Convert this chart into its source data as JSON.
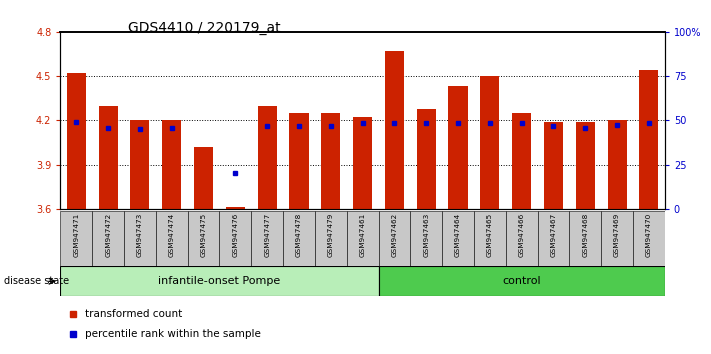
{
  "title": "GDS4410 / 220179_at",
  "samples": [
    "GSM947471",
    "GSM947472",
    "GSM947473",
    "GSM947474",
    "GSM947475",
    "GSM947476",
    "GSM947477",
    "GSM947478",
    "GSM947479",
    "GSM947461",
    "GSM947462",
    "GSM947463",
    "GSM947464",
    "GSM947465",
    "GSM947466",
    "GSM947467",
    "GSM947468",
    "GSM947469",
    "GSM947470"
  ],
  "bar_values": [
    4.52,
    4.3,
    4.2,
    4.2,
    4.02,
    3.61,
    4.3,
    4.25,
    4.25,
    4.22,
    4.67,
    4.28,
    4.43,
    4.5,
    4.25,
    4.19,
    4.19,
    4.2,
    4.54
  ],
  "blue_dot_values": [
    4.19,
    4.15,
    4.14,
    4.15,
    null,
    3.84,
    4.16,
    4.16,
    4.16,
    4.18,
    4.18,
    4.18,
    4.18,
    4.18,
    4.18,
    4.16,
    4.15,
    4.17,
    4.18
  ],
  "bar_color": "#CC2200",
  "dot_color": "#0000CC",
  "bar_bottom": 3.6,
  "ylim": [
    3.6,
    4.8
  ],
  "yticks": [
    3.6,
    3.9,
    4.2,
    4.5,
    4.8
  ],
  "right_yticks": [
    0,
    25,
    50,
    75,
    100
  ],
  "right_yticklabels": [
    "0",
    "25",
    "50",
    "75",
    "100%"
  ],
  "grid_values": [
    3.9,
    4.2,
    4.5
  ],
  "title_fontsize": 10,
  "tick_fontsize": 7,
  "group_label_fontsize": 8,
  "legend_fontsize": 7.5,
  "disease_state_label": "disease state",
  "group_divider_index": 10,
  "pompe_color": "#B8EEB8",
  "control_color": "#4ECB4E",
  "label_bg_color": "#C8C8C8"
}
